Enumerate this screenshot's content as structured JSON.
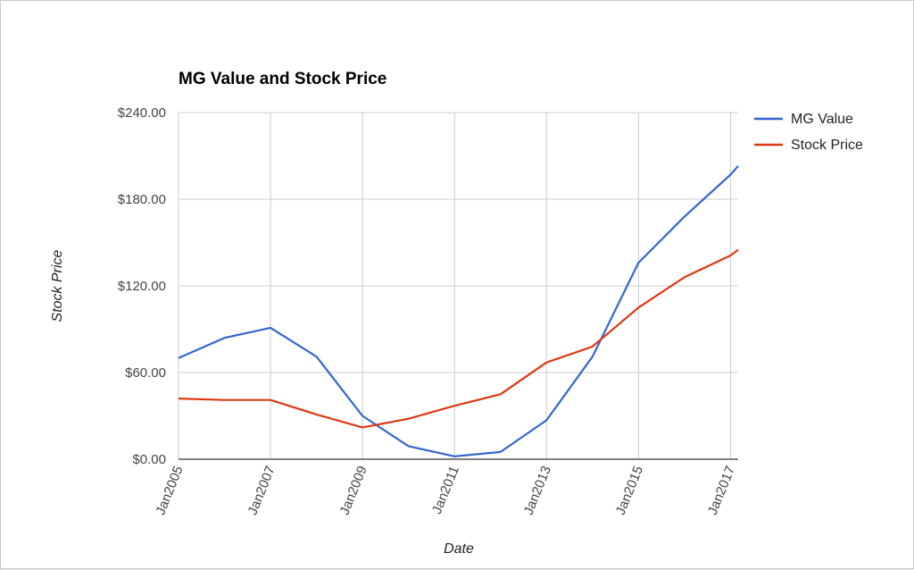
{
  "chart_data": {
    "type": "line",
    "title": "MG Value and Stock Price",
    "xlabel": "Date",
    "ylabel": "Stock Price",
    "x": [
      "2005-01",
      "2006-01",
      "2007-01",
      "2008-01",
      "2009-01",
      "2010-01",
      "2011-01",
      "2012-01",
      "2013-01",
      "2014-01",
      "2015-01",
      "2016-01",
      "2017-01",
      "2017-03"
    ],
    "x_ticks": [
      "Jan2005",
      "Jan2007",
      "Jan2009",
      "Jan2011",
      "Jan2013",
      "Jan2015",
      "Jan2017"
    ],
    "y_ticks": [
      "$0.00",
      "$60.00",
      "$120.00",
      "$180.00",
      "$240.00"
    ],
    "ylim": [
      0,
      240
    ],
    "grid": true,
    "legend_position": "right",
    "series": [
      {
        "name": "MG Value",
        "color": "#3366cc",
        "values": [
          70,
          84,
          91,
          71,
          30,
          9,
          2,
          5,
          27,
          71,
          136,
          168,
          197,
          203
        ]
      },
      {
        "name": "Stock Price",
        "color": "#dc3912",
        "values": [
          42,
          41,
          41,
          31,
          22,
          28,
          37,
          45,
          67,
          78,
          105,
          126,
          141,
          145
        ]
      }
    ]
  }
}
